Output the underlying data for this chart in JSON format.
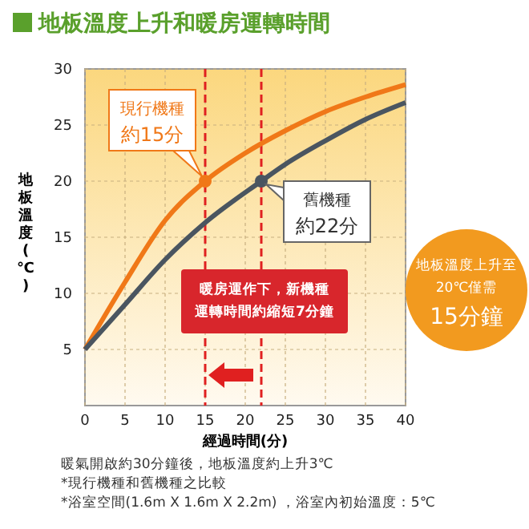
{
  "chart_data": {
    "type": "line",
    "title": "地板溫度上升和暖房運轉時間",
    "xlabel": "經過時間(分)",
    "ylabel": "地板溫度(℃)",
    "xlim": [
      0,
      40
    ],
    "xticks": [
      0,
      5,
      10,
      15,
      20,
      25,
      30,
      35,
      40
    ],
    "ylim": [
      0,
      30
    ],
    "yticks": [
      5,
      10,
      15,
      20,
      25,
      30
    ],
    "grid": true,
    "marker": "none",
    "line_style": "solid",
    "series": [
      {
        "color": "#f07818",
        "x": [
          0,
          5,
          10,
          15,
          20,
          25,
          30,
          35,
          40
        ],
        "values": [
          5,
          11,
          16.5,
          20,
          22.5,
          24.5,
          26.2,
          27.5,
          28.6
        ]
      },
      {
        "color": "#4a5560",
        "x": [
          0,
          5,
          10,
          15,
          22,
          25,
          30,
          35,
          40
        ],
        "values": [
          5,
          9,
          13,
          16.3,
          20,
          21.5,
          23.6,
          25.5,
          27
        ]
      }
    ],
    "ref_lines": [
      {
        "axis": "x",
        "value": 15,
        "color": "#e02020",
        "line_style": "dashed"
      },
      {
        "axis": "x",
        "value": 22,
        "color": "#e02020",
        "line_style": "dashed"
      }
    ],
    "annotations": [
      "現行機種",
      "約15分",
      "舊機種",
      "約22分",
      "暖房運作下，新機種",
      "運轉時間約縮短7分鐘",
      "地板溫度上升至",
      "20℃僅需",
      "15分鐘",
      "暖氣開啟約30分鐘後，地板溫度約上升3℃",
      "*現行機種和舊機種之比較",
      "*浴室空間(1.6m X 1.6m X 2.2m) ，浴室內初始溫度：5℃"
    ]
  }
}
